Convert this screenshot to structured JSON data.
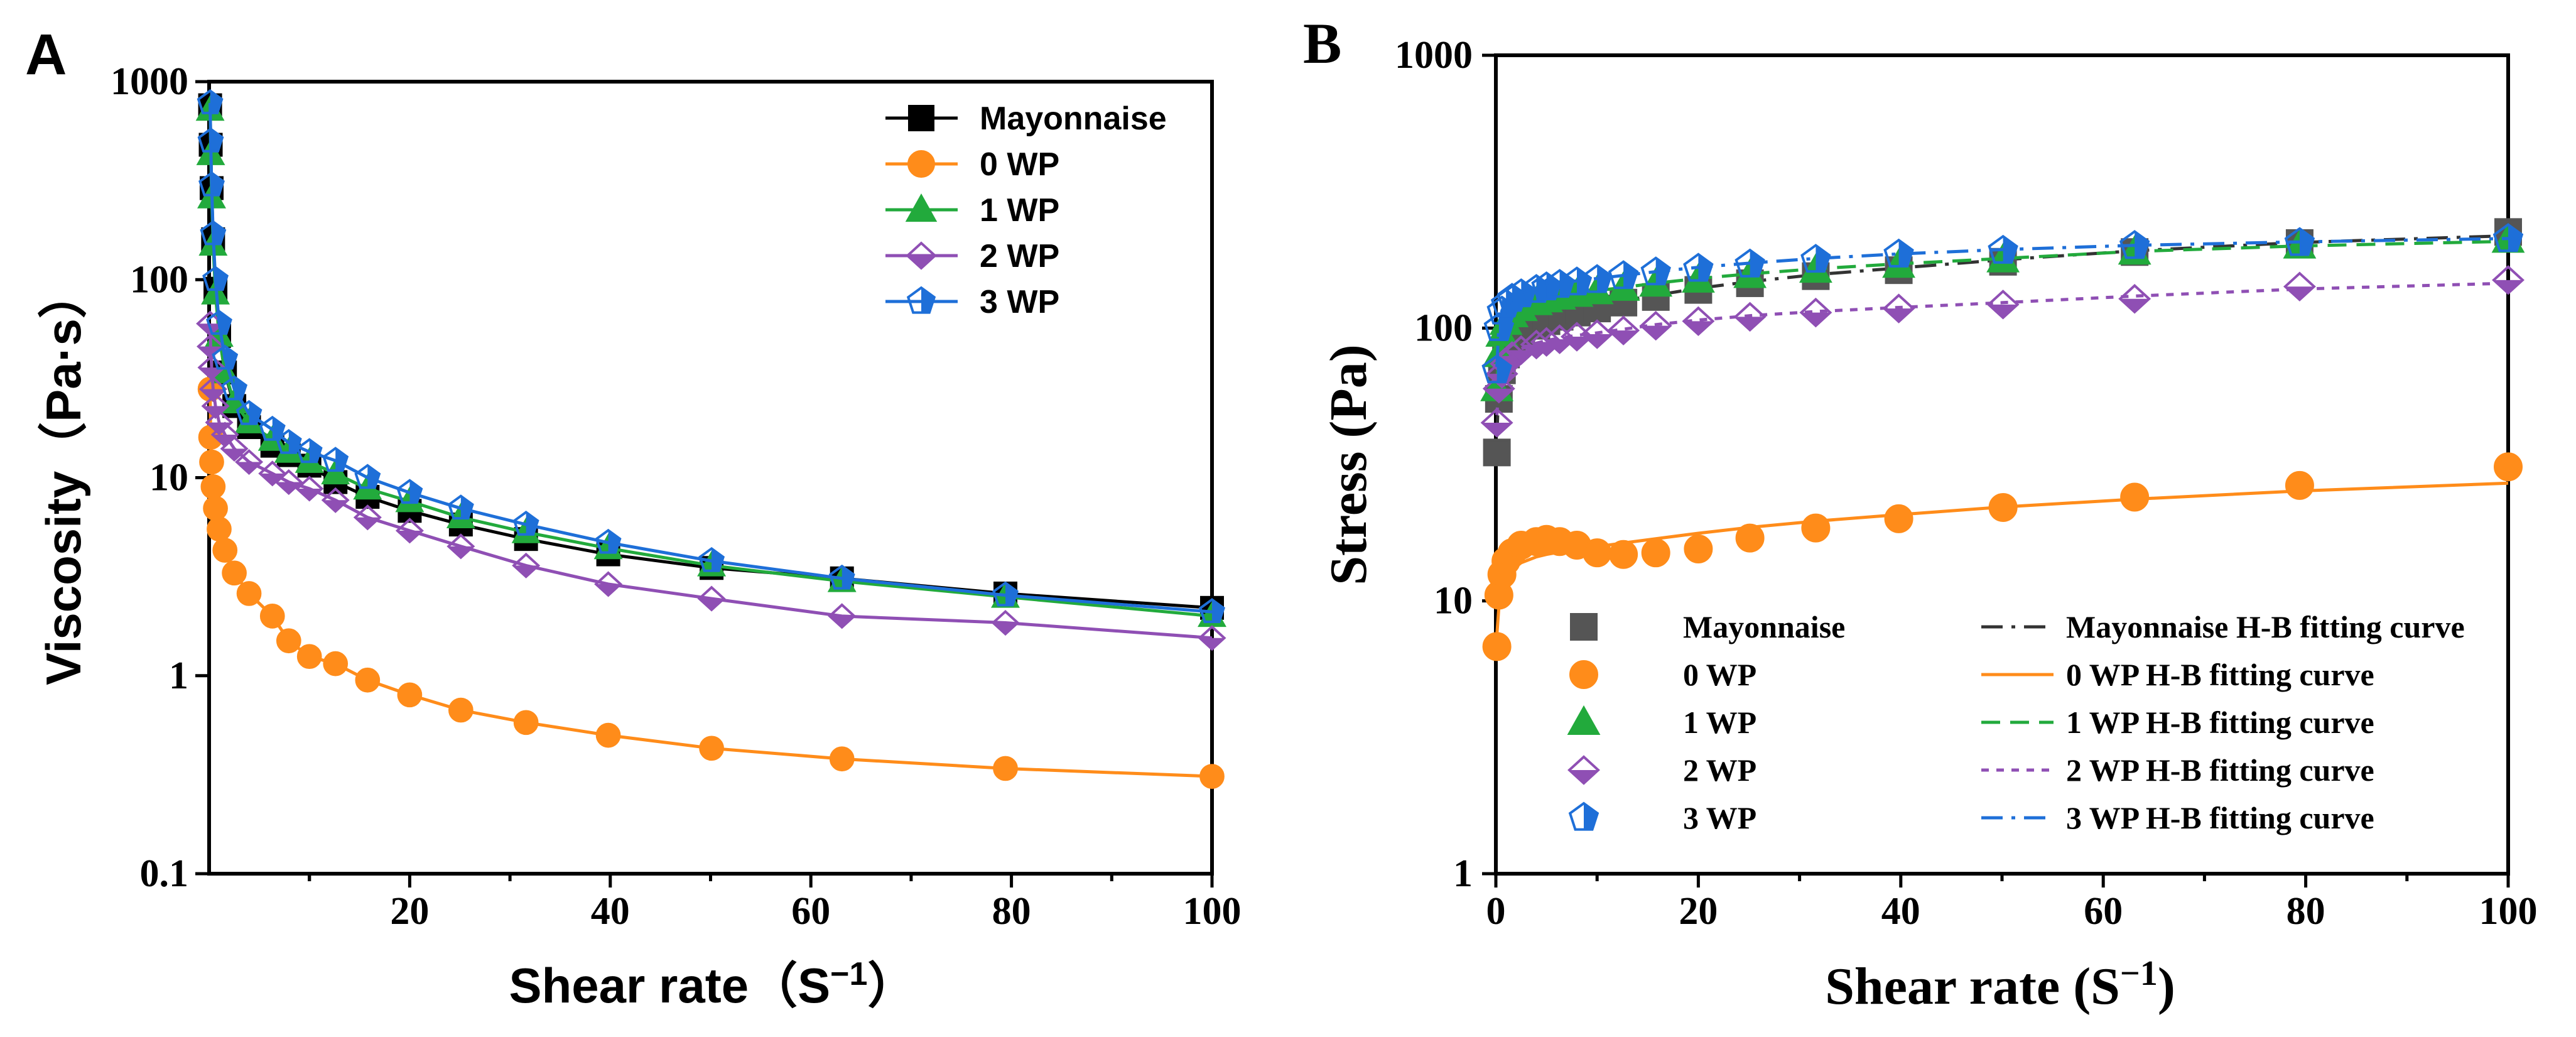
{
  "chart_data": [
    {
      "type": "line",
      "panel_label": "A",
      "xlabel": "Shear rate（S",
      "xlabel_sup": "−1",
      "xlabel_close": "）",
      "ylabel": "Viscosity（Pa·s）",
      "yscale": "log",
      "xlim": [
        0,
        100
      ],
      "ylim": [
        0.1,
        1000
      ],
      "xticks": [
        "20",
        "40",
        "60",
        "80",
        "100"
      ],
      "yticks": [
        "0.1",
        "1",
        "10",
        "100",
        "1000"
      ],
      "legend_position": "top-right",
      "x": [
        0.1,
        0.158,
        0.251,
        0.398,
        0.631,
        1,
        1.58,
        2.51,
        3.98,
        6.31,
        7.94,
        10,
        12.6,
        15.8,
        20,
        25.1,
        31.6,
        39.8,
        50.1,
        63.1,
        79.4,
        100
      ],
      "series": [
        {
          "name": "Mayonnaise",
          "color": "#000000",
          "marker": "square-filled",
          "values": [
            760,
            480,
            290,
            160,
            90,
            52,
            34,
            23,
            18,
            14.5,
            13,
            11.5,
            9.5,
            8,
            6.8,
            5.8,
            4.9,
            4.1,
            3.5,
            3.1,
            2.6,
            2.2
          ]
        },
        {
          "name": "0 WP",
          "color": "#ff8c1a",
          "marker": "circle-filled",
          "values": [
            28,
            16,
            12,
            9,
            7,
            5.5,
            4.3,
            3.3,
            2.6,
            2.0,
            1.5,
            1.25,
            1.15,
            0.95,
            0.8,
            0.67,
            0.58,
            0.5,
            0.43,
            0.38,
            0.34,
            0.31
          ]
        },
        {
          "name": "1 WP",
          "color": "#22aa3c",
          "marker": "triangle-filled",
          "values": [
            720,
            430,
            260,
            150,
            85,
            52,
            34,
            24,
            19,
            15.5,
            13.5,
            12,
            10.5,
            8.8,
            7.6,
            6.3,
            5.3,
            4.4,
            3.6,
            3.0,
            2.5,
            2.0
          ]
        },
        {
          "name": "2 WP",
          "color": "#8f4fb4",
          "marker": "diamond-half",
          "values": [
            60,
            46,
            36,
            28,
            23,
            19,
            16.5,
            14,
            12,
            10.5,
            9.5,
            8.8,
            7.7,
            6.3,
            5.4,
            4.5,
            3.6,
            2.9,
            2.45,
            2.0,
            1.85,
            1.55
          ]
        },
        {
          "name": "3 WP",
          "color": "#1e6fd8",
          "marker": "pentagon-half",
          "values": [
            780,
            500,
            300,
            170,
            100,
            60,
            40,
            28,
            21,
            17.5,
            15,
            13.5,
            12.2,
            10,
            8.4,
            7.0,
            5.8,
            4.7,
            3.8,
            3.1,
            2.55,
            2.1
          ]
        }
      ]
    },
    {
      "type": "scatter",
      "panel_label": "B",
      "xlabel": "Shear rate (S",
      "xlabel_sup": "−1",
      "xlabel_close": ")",
      "ylabel": "Stress (Pa)",
      "yscale": "log",
      "xlim": [
        0,
        100
      ],
      "ylim": [
        1,
        1000
      ],
      "xticks": [
        "0",
        "20",
        "40",
        "60",
        "80",
        "100"
      ],
      "yticks": [
        "1",
        "10",
        "100",
        "1000"
      ],
      "legend_position": "bottom-right",
      "x": [
        0.1,
        0.3,
        0.6,
        1,
        1.6,
        2.5,
        4,
        5,
        6.3,
        8,
        10,
        12.6,
        15.8,
        20,
        25.1,
        31.6,
        39.8,
        50.1,
        63.1,
        79.4,
        100
      ],
      "series": [
        {
          "name": "Mayonnaise",
          "fit_name": "Mayonnaise H-B fitting curve",
          "color": "#555555",
          "fit_color": "#333333",
          "marker": "square-filled",
          "fit_style": "dashdot",
          "values": [
            35,
            55,
            70,
            80,
            88,
            95,
            102,
            106,
            110,
            114,
            118,
            124,
            130,
            138,
            146,
            155,
            163,
            175,
            190,
            205,
            225
          ],
          "fit": [
            40,
            62,
            74,
            82,
            90,
            97,
            104,
            108,
            112,
            116,
            120,
            126,
            132,
            140,
            148,
            157,
            166,
            178,
            192,
            206,
            218
          ]
        },
        {
          "name": "0 WP",
          "fit_name": "0 WP H-B fitting curve",
          "color": "#ff8c1a",
          "fit_color": "#ff8c1a",
          "marker": "circle-filled",
          "fit_style": "solid",
          "values": [
            6.8,
            10.5,
            12.5,
            14,
            15,
            16,
            16.5,
            16.8,
            16.5,
            16,
            15,
            14.8,
            15,
            15.5,
            17,
            18.5,
            20,
            22,
            24,
            26.5,
            31
          ],
          "fit": [
            7.5,
            9.5,
            11,
            12,
            13,
            13.8,
            14.5,
            14.8,
            15.1,
            15.4,
            15.8,
            16.3,
            16.9,
            17.7,
            18.6,
            19.6,
            20.7,
            22.1,
            23.6,
            25.3,
            27
          ]
        },
        {
          "name": "1 WP",
          "fit_name": "1 WP H-B fitting curve",
          "color": "#22aa3c",
          "fit_color": "#22aa3c",
          "marker": "triangle-filled",
          "fit_style": "dashed",
          "values": [
            60,
            80,
            95,
            105,
            112,
            118,
            124,
            127,
            130,
            133,
            136,
            140,
            145,
            150,
            156,
            163,
            170,
            178,
            190,
            200,
            210
          ],
          "fit": [
            62,
            82,
            96,
            106,
            113,
            119,
            125,
            128,
            131,
            134,
            137,
            141,
            146,
            152,
            158,
            165,
            172,
            180,
            191,
            200,
            208
          ]
        },
        {
          "name": "2 WP",
          "fit_name": "2 WP H-B fitting curve",
          "color": "#8f4fb4",
          "fit_color": "#8f4fb4",
          "marker": "diamond-half",
          "fit_style": "dotted",
          "values": [
            45,
            60,
            68,
            74,
            79,
            83,
            87,
            89,
            91,
            93,
            95,
            98,
            102,
            106,
            110,
            114,
            118,
            122,
            128,
            142,
            150
          ],
          "fit": [
            48,
            62,
            70,
            76,
            80,
            84,
            88,
            90,
            92,
            94,
            96,
            99,
            103,
            107,
            111,
            115,
            119,
            124,
            131,
            139,
            146
          ]
        },
        {
          "name": "3 WP",
          "fit_name": "3 WP H-B fitting curve",
          "color": "#1e6fd8",
          "fit_color": "#1e6fd8",
          "marker": "pentagon-half",
          "fit_style": "dashdot",
          "values": [
            70,
            100,
            115,
            122,
            128,
            133,
            138,
            141,
            144,
            147,
            150,
            155,
            160,
            165,
            171,
            178,
            186,
            192,
            200,
            205,
            212
          ],
          "fit": [
            72,
            102,
            116,
            124,
            130,
            135,
            140,
            143,
            146,
            149,
            152,
            156,
            161,
            167,
            173,
            180,
            187,
            194,
            201,
            207,
            213
          ]
        }
      ]
    }
  ]
}
